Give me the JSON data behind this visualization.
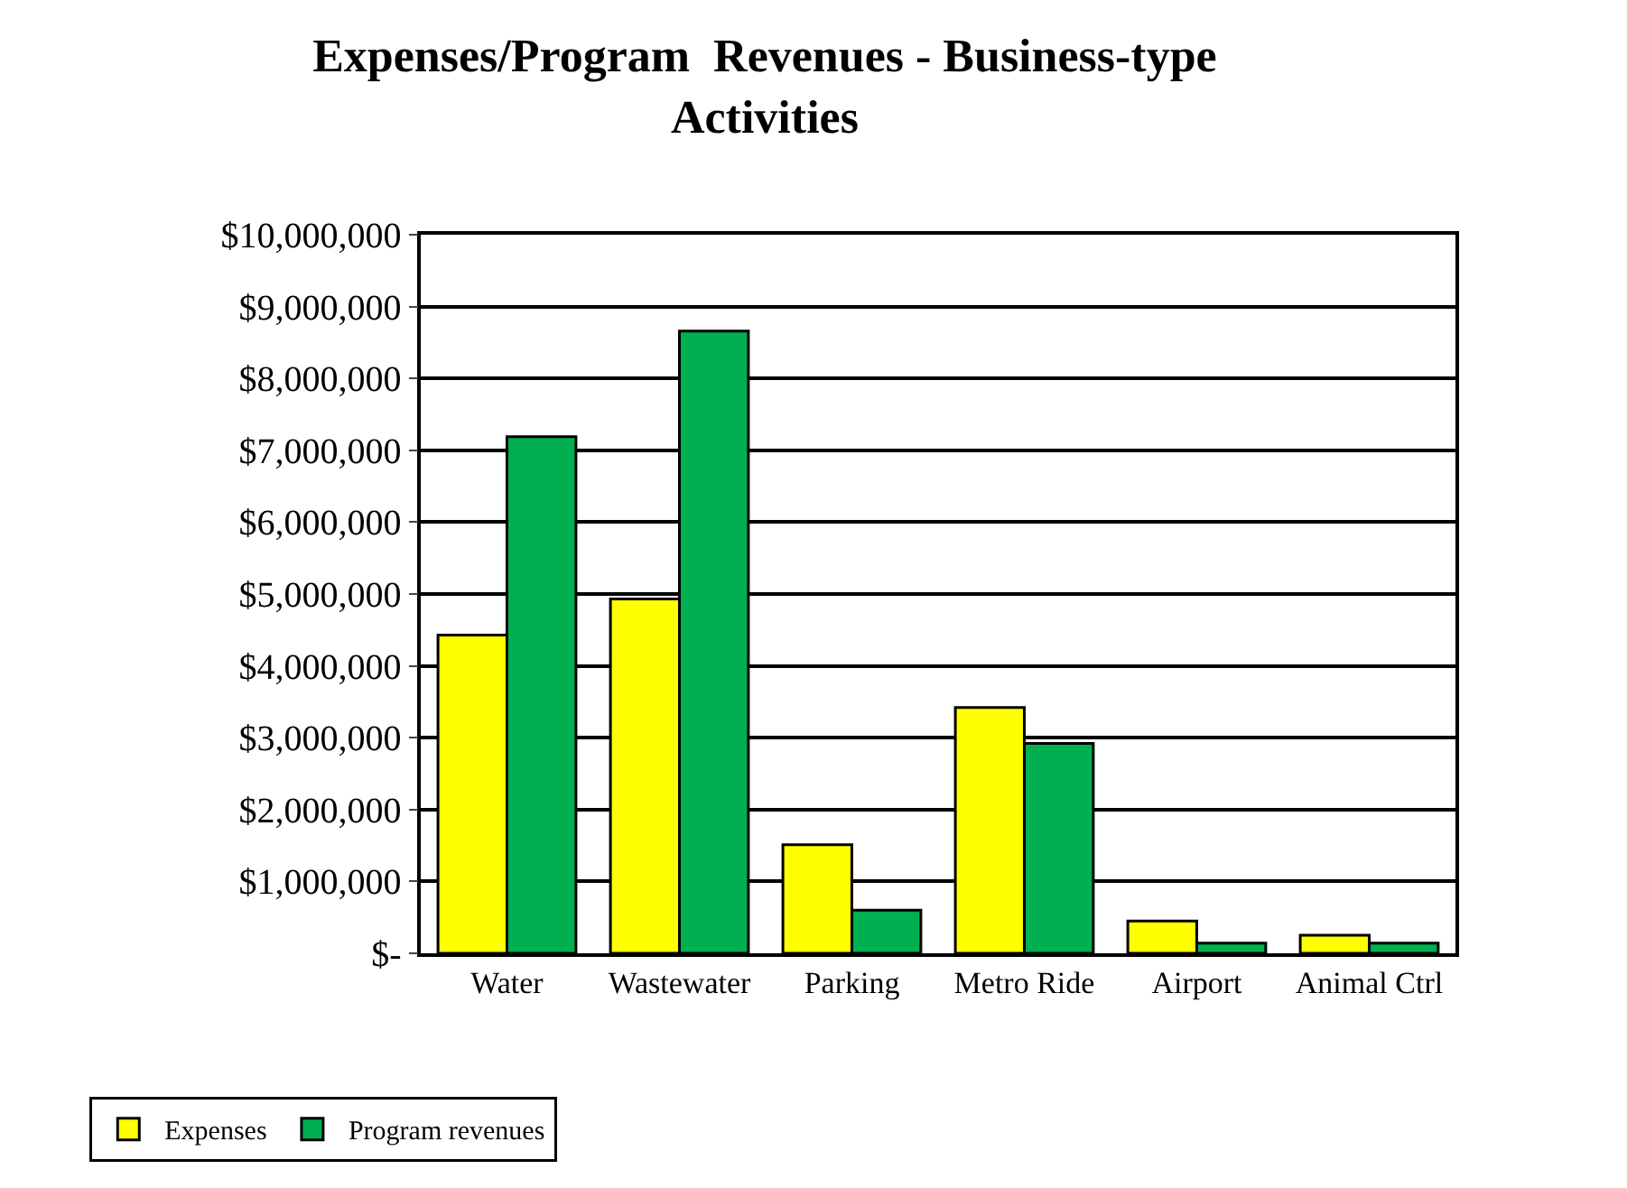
{
  "chart_data": {
    "type": "bar",
    "title": "Expenses/Program  Revenues - Business-type\nActivities",
    "categories": [
      "Water",
      "Wastewater",
      "Parking",
      "Metro Ride",
      "Airport",
      "Animal Ctrl"
    ],
    "series": [
      {
        "name": "Expenses",
        "color": "#ffff00",
        "values": [
          4430000,
          4930000,
          1510000,
          3420000,
          450000,
          250000
        ]
      },
      {
        "name": "Program revenues",
        "color": "#00b050",
        "values": [
          7190000,
          8660000,
          600000,
          2920000,
          140000,
          140000
        ]
      }
    ],
    "ylim": [
      0,
      10000000
    ],
    "yticks": [
      {
        "value": 0,
        "label": "$-"
      },
      {
        "value": 1000000,
        "label": "$1,000,000"
      },
      {
        "value": 2000000,
        "label": "$2,000,000"
      },
      {
        "value": 3000000,
        "label": "$3,000,000"
      },
      {
        "value": 4000000,
        "label": "$4,000,000"
      },
      {
        "value": 5000000,
        "label": "$5,000,000"
      },
      {
        "value": 6000000,
        "label": "$6,000,000"
      },
      {
        "value": 7000000,
        "label": "$7,000,000"
      },
      {
        "value": 8000000,
        "label": "$8,000,000"
      },
      {
        "value": 9000000,
        "label": "$9,000,000"
      },
      {
        "value": 10000000,
        "label": "$10,000,000"
      }
    ],
    "grid": "y",
    "legend": "bottom left"
  }
}
